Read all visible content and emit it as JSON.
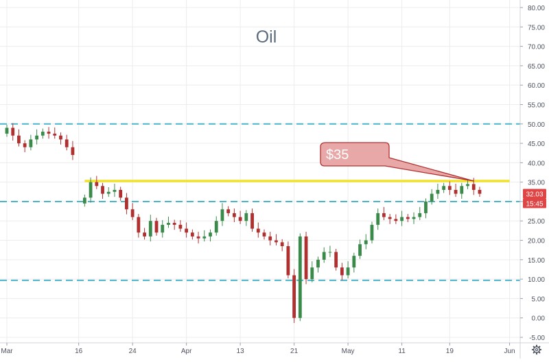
{
  "chart_data": {
    "type": "candlestick",
    "title": "Oil",
    "xlabel": "",
    "ylabel": "",
    "ylim": [
      -5,
      80
    ],
    "grid": true,
    "x_ticks": [
      "Mar",
      "16",
      "24",
      "Apr",
      "13",
      "21",
      "May",
      "11",
      "19",
      "Jun"
    ],
    "y_ticks": [
      "-5.00",
      "0.00",
      "5.00",
      "10.00",
      "15.00",
      "20.00",
      "25.00",
      "30.00",
      "35.00",
      "40.00",
      "45.00",
      "50.00",
      "55.00",
      "60.00",
      "65.00",
      "70.00",
      "75.00",
      "80.00"
    ],
    "last_price_label": "32.03",
    "time_label": "15:45",
    "price_series": [
      {
        "t": 0,
        "v": 49
      },
      {
        "t": 1,
        "v": 47
      },
      {
        "t": 2,
        "v": 45
      },
      {
        "t": 3,
        "v": 44
      },
      {
        "t": 4,
        "v": 46
      },
      {
        "t": 5,
        "v": 47
      },
      {
        "t": 6,
        "v": 48
      },
      {
        "t": 7,
        "v": 47.5
      },
      {
        "t": 8,
        "v": 47
      },
      {
        "t": 9,
        "v": 46
      },
      {
        "t": 10,
        "v": 44
      },
      {
        "t": 11,
        "v": 42
      },
      {
        "t": 13,
        "v": 31
      },
      {
        "t": 14,
        "v": 35
      },
      {
        "t": 15,
        "v": 34
      },
      {
        "t": 16,
        "v": 32
      },
      {
        "t": 17,
        "v": 32.5
      },
      {
        "t": 18,
        "v": 33
      },
      {
        "t": 19,
        "v": 31
      },
      {
        "t": 20,
        "v": 28
      },
      {
        "t": 21,
        "v": 26
      },
      {
        "t": 22,
        "v": 22
      },
      {
        "t": 23,
        "v": 21
      },
      {
        "t": 24,
        "v": 25
      },
      {
        "t": 25,
        "v": 22
      },
      {
        "t": 26,
        "v": 24
      },
      {
        "t": 27,
        "v": 24.5
      },
      {
        "t": 28,
        "v": 24
      },
      {
        "t": 29,
        "v": 23
      },
      {
        "t": 30,
        "v": 22
      },
      {
        "t": 31,
        "v": 21
      },
      {
        "t": 32,
        "v": 20.5
      },
      {
        "t": 33,
        "v": 21
      },
      {
        "t": 34,
        "v": 22
      },
      {
        "t": 35,
        "v": 25
      },
      {
        "t": 36,
        "v": 28
      },
      {
        "t": 37,
        "v": 27
      },
      {
        "t": 38,
        "v": 26
      },
      {
        "t": 39,
        "v": 25
      },
      {
        "t": 40,
        "v": 27
      },
      {
        "t": 41,
        "v": 23
      },
      {
        "t": 42,
        "v": 22
      },
      {
        "t": 43,
        "v": 21
      },
      {
        "t": 44,
        "v": 20
      },
      {
        "t": 45,
        "v": 19.5
      },
      {
        "t": 46,
        "v": 18.5
      },
      {
        "t": 47,
        "v": 11
      },
      {
        "t": 48,
        "v": 0
      },
      {
        "t": 49,
        "v": 21
      },
      {
        "t": 50,
        "v": 10
      },
      {
        "t": 51,
        "v": 13
      },
      {
        "t": 52,
        "v": 15
      },
      {
        "t": 53,
        "v": 17
      },
      {
        "t": 54,
        "v": 17
      },
      {
        "t": 55,
        "v": 13
      },
      {
        "t": 56,
        "v": 11
      },
      {
        "t": 57,
        "v": 13
      },
      {
        "t": 58,
        "v": 16
      },
      {
        "t": 59,
        "v": 19
      },
      {
        "t": 60,
        "v": 20
      },
      {
        "t": 61,
        "v": 24
      },
      {
        "t": 62,
        "v": 27
      },
      {
        "t": 63,
        "v": 26
      },
      {
        "t": 64,
        "v": 25.5
      },
      {
        "t": 65,
        "v": 25
      },
      {
        "t": 66,
        "v": 26
      },
      {
        "t": 67,
        "v": 25.5
      },
      {
        "t": 68,
        "v": 26
      },
      {
        "t": 69,
        "v": 27
      },
      {
        "t": 70,
        "v": 30
      },
      {
        "t": 71,
        "v": 32
      },
      {
        "t": 72,
        "v": 33
      },
      {
        "t": 73,
        "v": 34
      },
      {
        "t": 74,
        "v": 33
      },
      {
        "t": 75,
        "v": 32
      },
      {
        "t": 76,
        "v": 34
      },
      {
        "t": 77,
        "v": 34.5
      },
      {
        "t": 78,
        "v": 33
      },
      {
        "t": 79,
        "v": 32
      }
    ],
    "tick_t": [
      0,
      12,
      21,
      30,
      39,
      48,
      57,
      66,
      74,
      84
    ],
    "t_range": [
      0,
      86
    ],
    "reference_lines": [
      {
        "value": 50,
        "style": "dashed",
        "color": "#48b6c9"
      },
      {
        "value": 30,
        "style": "dashed",
        "color": "#48b6c9"
      },
      {
        "value": 9.7,
        "style": "dashed",
        "color": "#48b6c9"
      }
    ],
    "trend_line": {
      "value": 35.3,
      "t_start": 13,
      "t_end": 84,
      "color": "#f2e22b"
    },
    "callout": {
      "text": "$35",
      "anchor_t": 78,
      "anchor_value": 35.3
    },
    "colors": {
      "up": "#3a8a4a",
      "down": "#b03030",
      "grid": "#ececec",
      "axis_text": "#4c525e",
      "title": "#5a6b7d",
      "callout_fill": "#e8a8a8",
      "callout_stroke": "#b03030",
      "price_tag": "#e04545"
    }
  }
}
